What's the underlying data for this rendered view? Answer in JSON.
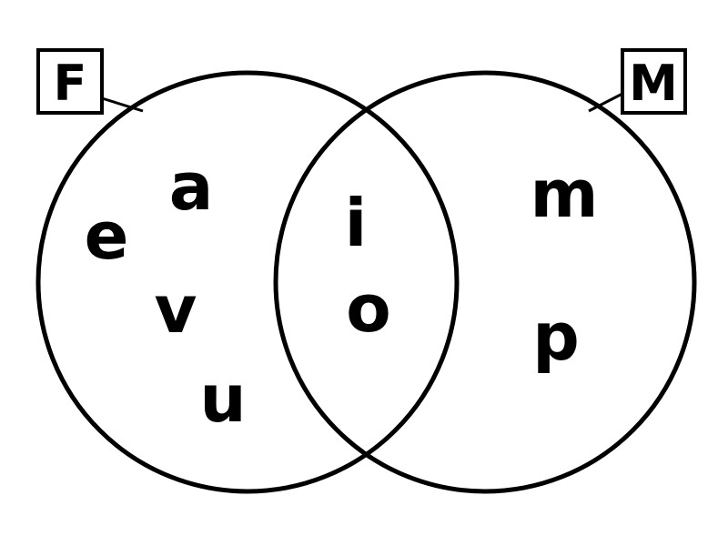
{
  "sets": {
    "left": {
      "label": "F",
      "members": [
        "a",
        "e",
        "v",
        "u"
      ]
    },
    "right": {
      "label": "M",
      "members": [
        "m",
        "p"
      ]
    },
    "intersection": {
      "members": [
        "i",
        "o"
      ]
    }
  },
  "colors": {
    "stroke": "#000000",
    "text": "#000000",
    "background": "#ffffff"
  }
}
